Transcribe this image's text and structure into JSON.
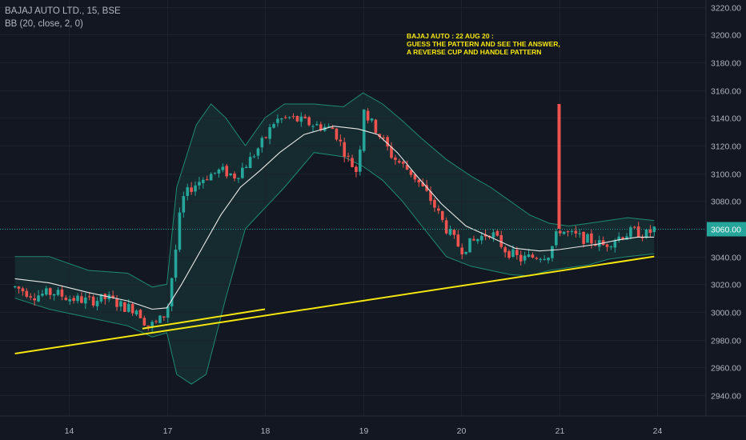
{
  "legend": {
    "symbol": "BAJAJ AUTO LTD., 15, BSE",
    "indicator": "BB (20, close, 2, 0)"
  },
  "annotation": {
    "lines": [
      "BAJAJ AUTO : 22 AUG 20 :",
      "GUESS THE PATTERN AND SEE THE ANSWER,",
      "A REVERSE CUP AND HANDLE PATTERN"
    ]
  },
  "colors": {
    "background": "#131722",
    "up": "#26a69a",
    "down": "#ef5350",
    "bb_band": "#1f8a70",
    "bb_fill": "#193d3a",
    "bb_basis": "#e8e8e8",
    "trendline": "#f5e70e",
    "price_line": "#26a69a",
    "axis_text": "#b2b5be"
  },
  "chart_data": {
    "type": "candlestick",
    "title": "BAJAJ AUTO LTD., 15, BSE",
    "indicator": "Bollinger Bands (20, close, 2, 0)",
    "ylim": [
      2925,
      3225
    ],
    "yticks": [
      2940,
      2960,
      2980,
      3000,
      3020,
      3040,
      3060,
      3080,
      3100,
      3120,
      3140,
      3160,
      3180,
      3200,
      3220
    ],
    "xticks": [
      {
        "label": "14",
        "day": 0
      },
      {
        "label": "17",
        "day": 1
      },
      {
        "label": "18",
        "day": 2
      },
      {
        "label": "19",
        "day": 3
      },
      {
        "label": "20",
        "day": 4
      },
      {
        "label": "21",
        "day": 5
      },
      {
        "label": "24",
        "day": 6
      }
    ],
    "last_price": "3060.00",
    "last_price_value": 3060,
    "annotation": "BAJAJ AUTO : 22 AUG 20 : GUESS THE PATTERN AND SEE THE ANSWER, A REVERSE CUP AND HANDLE PATTERN",
    "close_path": [
      [
        -0.55,
        3018
      ],
      [
        -0.35,
        3012
      ],
      [
        -0.15,
        3014
      ],
      [
        0.0,
        3010
      ],
      [
        0.2,
        3008
      ],
      [
        0.4,
        3010
      ],
      [
        0.55,
        3004
      ],
      [
        0.7,
        3002
      ],
      [
        0.8,
        2990
      ],
      [
        0.9,
        2992
      ],
      [
        1.0,
        3000
      ],
      [
        1.05,
        3025
      ],
      [
        1.1,
        3050
      ],
      [
        1.15,
        3080
      ],
      [
        1.25,
        3090
      ],
      [
        1.4,
        3098
      ],
      [
        1.55,
        3102
      ],
      [
        1.7,
        3098
      ],
      [
        1.85,
        3110
      ],
      [
        2.0,
        3125
      ],
      [
        2.1,
        3138
      ],
      [
        2.25,
        3140
      ],
      [
        2.5,
        3135
      ],
      [
        2.7,
        3132
      ],
      [
        2.85,
        3110
      ],
      [
        2.95,
        3100
      ],
      [
        3.0,
        3150
      ],
      [
        3.05,
        3140
      ],
      [
        3.15,
        3130
      ],
      [
        3.3,
        3112
      ],
      [
        3.5,
        3100
      ],
      [
        3.7,
        3080
      ],
      [
        3.85,
        3060
      ],
      [
        4.0,
        3045
      ],
      [
        4.15,
        3052
      ],
      [
        4.3,
        3058
      ],
      [
        4.45,
        3045
      ],
      [
        4.6,
        3038
      ],
      [
        4.75,
        3040
      ],
      [
        4.9,
        3042
      ],
      [
        5.0,
        3060
      ],
      [
        5.1,
        3056
      ],
      [
        5.3,
        3052
      ],
      [
        5.45,
        3048
      ],
      [
        5.6,
        3054
      ],
      [
        5.75,
        3058
      ],
      [
        5.9,
        3056
      ],
      [
        5.97,
        3060
      ]
    ],
    "bb_upper": [
      [
        -0.55,
        3040
      ],
      [
        -0.2,
        3040
      ],
      [
        0.2,
        3030
      ],
      [
        0.6,
        3028
      ],
      [
        0.85,
        3018
      ],
      [
        1.0,
        3020
      ],
      [
        1.1,
        3090
      ],
      [
        1.3,
        3135
      ],
      [
        1.45,
        3150
      ],
      [
        1.6,
        3140
      ],
      [
        1.8,
        3120
      ],
      [
        2.0,
        3140
      ],
      [
        2.2,
        3150
      ],
      [
        2.5,
        3150
      ],
      [
        2.8,
        3148
      ],
      [
        3.0,
        3158
      ],
      [
        3.2,
        3150
      ],
      [
        3.4,
        3138
      ],
      [
        3.6,
        3125
      ],
      [
        3.85,
        3110
      ],
      [
        4.1,
        3098
      ],
      [
        4.3,
        3090
      ],
      [
        4.5,
        3080
      ],
      [
        4.7,
        3070
      ],
      [
        4.9,
        3064
      ],
      [
        5.1,
        3062
      ],
      [
        5.3,
        3064
      ],
      [
        5.5,
        3066
      ],
      [
        5.7,
        3068
      ],
      [
        5.97,
        3066
      ]
    ],
    "bb_lower": [
      [
        -0.55,
        3010
      ],
      [
        -0.2,
        3002
      ],
      [
        0.2,
        2996
      ],
      [
        0.6,
        2990
      ],
      [
        0.85,
        2982
      ],
      [
        1.0,
        2985
      ],
      [
        1.1,
        2955
      ],
      [
        1.25,
        2948
      ],
      [
        1.4,
        2955
      ],
      [
        1.6,
        3010
      ],
      [
        1.8,
        3060
      ],
      [
        2.0,
        3075
      ],
      [
        2.2,
        3090
      ],
      [
        2.5,
        3115
      ],
      [
        2.8,
        3112
      ],
      [
        3.0,
        3105
      ],
      [
        3.2,
        3095
      ],
      [
        3.4,
        3080
      ],
      [
        3.6,
        3062
      ],
      [
        3.85,
        3040
      ],
      [
        4.1,
        3033
      ],
      [
        4.3,
        3030
      ],
      [
        4.5,
        3027
      ],
      [
        4.7,
        3026
      ],
      [
        4.9,
        3030
      ],
      [
        5.1,
        3032
      ],
      [
        5.3,
        3034
      ],
      [
        5.5,
        3038
      ],
      [
        5.7,
        3040
      ],
      [
        5.97,
        3042
      ]
    ],
    "bb_basis": [
      [
        -0.55,
        3024
      ],
      [
        -0.2,
        3021
      ],
      [
        0.2,
        3014
      ],
      [
        0.6,
        3008
      ],
      [
        0.85,
        3002
      ],
      [
        1.0,
        3003
      ],
      [
        1.15,
        3020
      ],
      [
        1.35,
        3045
      ],
      [
        1.55,
        3070
      ],
      [
        1.75,
        3090
      ],
      [
        1.95,
        3102
      ],
      [
        2.15,
        3115
      ],
      [
        2.4,
        3128
      ],
      [
        2.7,
        3134
      ],
      [
        2.95,
        3132
      ],
      [
        3.15,
        3128
      ],
      [
        3.35,
        3115
      ],
      [
        3.55,
        3098
      ],
      [
        3.8,
        3078
      ],
      [
        4.05,
        3062
      ],
      [
        4.3,
        3054
      ],
      [
        4.55,
        3046
      ],
      [
        4.8,
        3044
      ],
      [
        5.0,
        3045
      ],
      [
        5.2,
        3047
      ],
      [
        5.4,
        3049
      ],
      [
        5.6,
        3052
      ],
      [
        5.8,
        3054
      ],
      [
        5.97,
        3054
      ]
    ],
    "trendlines": [
      {
        "x1": -0.55,
        "y1": 2970,
        "x2": 5.97,
        "y2": 3040
      },
      {
        "x1": 0.75,
        "y1": 2988,
        "x2": 2.0,
        "y2": 3002
      }
    ],
    "spikes": [
      {
        "x": 5.0,
        "high": 3150,
        "low": 3060
      }
    ]
  }
}
